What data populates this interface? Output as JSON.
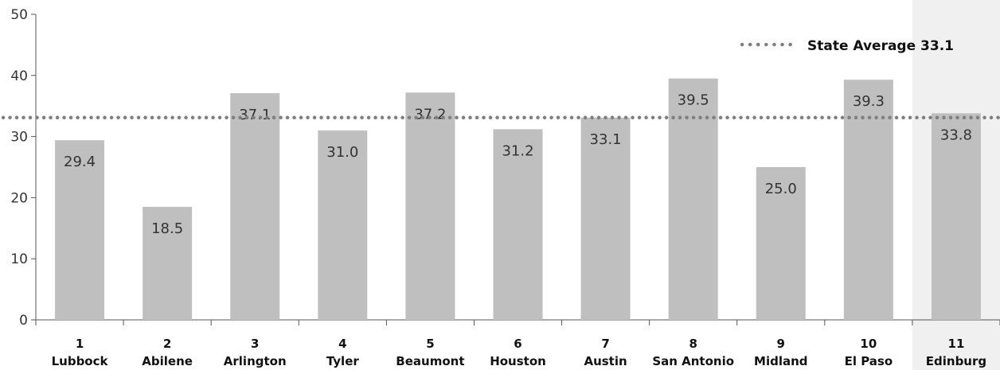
{
  "chart_data": {
    "type": "bar",
    "categories": [
      {
        "num": "1",
        "name": "Lubbock"
      },
      {
        "num": "2",
        "name": "Abilene"
      },
      {
        "num": "3",
        "name": "Arlington"
      },
      {
        "num": "4",
        "name": "Tyler"
      },
      {
        "num": "5",
        "name": "Beaumont"
      },
      {
        "num": "6",
        "name": "Houston"
      },
      {
        "num": "7",
        "name": "Austin"
      },
      {
        "num": "8",
        "name": "San Antonio"
      },
      {
        "num": "9",
        "name": "Midland"
      },
      {
        "num": "10",
        "name": "El Paso"
      },
      {
        "num": "11",
        "name": "Edinburg"
      }
    ],
    "values": [
      29.4,
      18.5,
      37.1,
      31.0,
      37.2,
      31.2,
      33.1,
      39.5,
      25.0,
      39.3,
      33.8
    ],
    "data_labels": [
      "29.4",
      "18.5",
      "37.1",
      "31.0",
      "37.2",
      "31.2",
      "33.1",
      "39.5",
      "25.0",
      "39.3",
      "33.8"
    ],
    "ylim": [
      0,
      50
    ],
    "yticks": [
      "0",
      "10",
      "20",
      "30",
      "40",
      "50"
    ],
    "reference_line": {
      "value": 33.1,
      "label": "State Average 33.1",
      "style": "dotted"
    },
    "highlighted_category_index": 10,
    "legend_placement": "top-right",
    "grid": false,
    "title": "",
    "xlabel": "",
    "ylabel": "",
    "colors": {
      "bar": "#bfbfbf",
      "reference_line": "#7f7f7f",
      "highlight_background": "#f0f0f0",
      "axis": "#555555"
    }
  }
}
